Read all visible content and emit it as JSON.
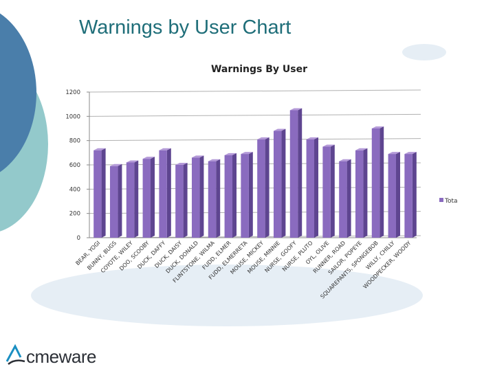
{
  "slide": {
    "title": "Warnings by User Chart",
    "logo_text": "cmeware",
    "logo_letter": "A"
  },
  "colors": {
    "bar": "#8a6bbf",
    "bar_side": "#5e4590",
    "bar_top": "#b49ad8",
    "grid": "#b0b0b0",
    "title": "#1f6e79",
    "deco_blue": "#4a7eaa",
    "deco_teal": "#93c9cb",
    "deco_light": "#e6eef5"
  },
  "chart_data": {
    "type": "bar",
    "title": "Warnings By User",
    "categories": [
      "BEAR, YOGI",
      "BUNNY, BUGS",
      "COYOTE, WILEY",
      "DOO, SCOOBY",
      "DUCK, DAFFY",
      "DUCK, DAISY",
      "DUCK, DONALD",
      "FLINTSTONE, WILMA",
      "FUDD, ELMER",
      "FUDD, ELMERRETA",
      "MOUSE, MICKEY",
      "MOUSE, MINNIE",
      "NURSE, GOOFY",
      "NURSE, PLUTO",
      "OYL, OLIVE",
      "RUNNER, ROAD",
      "SAILOR, POPEYE",
      "SQUAREPANTS, SPONGEBOB",
      "WILLY, CHILLY",
      "WOODPECKER, WOODY"
    ],
    "series": [
      {
        "name": "Tota",
        "values": [
          720,
          590,
          620,
          650,
          720,
          600,
          660,
          630,
          680,
          690,
          810,
          880,
          1050,
          810,
          750,
          630,
          720,
          900,
          690,
          690
        ]
      }
    ],
    "ylim": [
      0,
      1200
    ],
    "yticks": [
      0,
      200,
      400,
      600,
      800,
      1000,
      1200
    ],
    "ytick_labels": [
      "0",
      "200",
      "400",
      "600",
      "800",
      "1000",
      "1200"
    ],
    "grid": true,
    "legend": "right"
  }
}
